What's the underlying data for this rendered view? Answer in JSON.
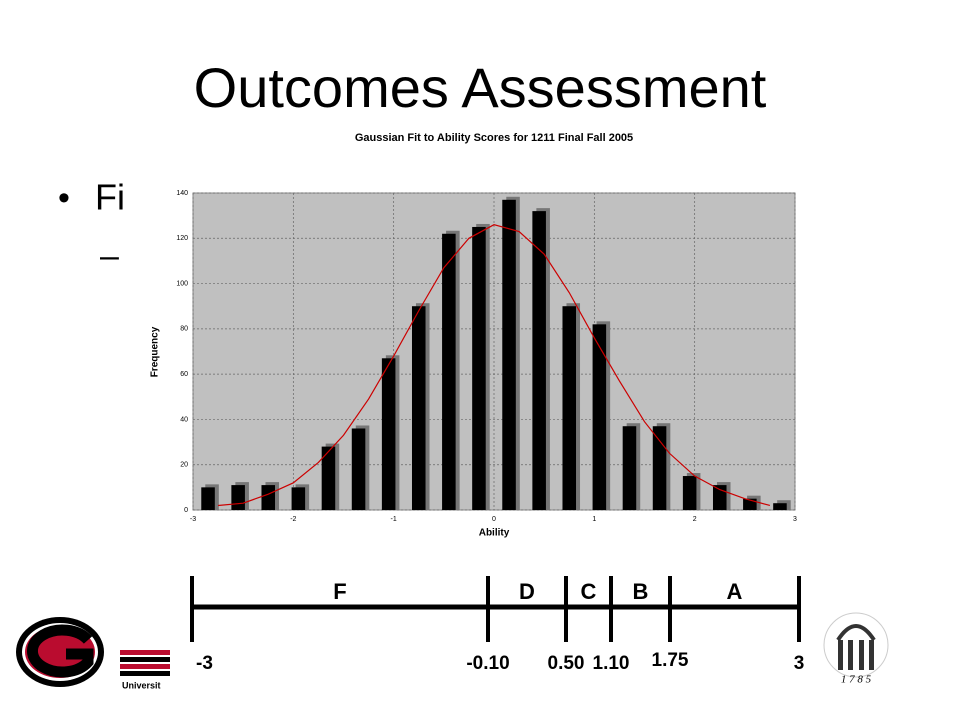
{
  "slide": {
    "title": "Outcomes Assessment",
    "bullet": "Fi",
    "sub_bullet": "–"
  },
  "chart_data": {
    "type": "bar",
    "title": "Gaussian Fit to Ability Scores for 1211 Final Fall 2005",
    "x_label": "Ability",
    "y_label": "Frequency",
    "bars": {
      "color": "#000000",
      "x": [
        -2.85,
        -2.55,
        -2.25,
        -1.95,
        -1.65,
        -1.35,
        -1.05,
        -0.75,
        -0.45,
        -0.15,
        0.15,
        0.45,
        0.75,
        1.05,
        1.35,
        1.65,
        1.95,
        2.25,
        2.55,
        2.85
      ],
      "values": [
        10,
        11,
        11,
        10,
        28,
        36,
        67,
        90,
        122,
        125,
        137,
        132,
        90,
        82,
        37,
        37,
        15,
        11,
        5,
        3
      ]
    },
    "fit": {
      "color": "#cc0000",
      "x": [
        -2.75,
        -2.5,
        -2.25,
        -2,
        -1.75,
        -1.5,
        -1.25,
        -1,
        -0.75,
        -0.5,
        -0.25,
        0,
        0.25,
        0.5,
        0.75,
        1,
        1.25,
        1.5,
        1.75,
        2,
        2.25,
        2.5,
        2.75
      ],
      "values": [
        2,
        3,
        7,
        12,
        21,
        33,
        49,
        68,
        88,
        107,
        120,
        126,
        123,
        113,
        96,
        76,
        57,
        39,
        25,
        15,
        9,
        5,
        2
      ]
    },
    "xlim": [
      -3,
      3
    ],
    "xticks": [
      -3,
      -2,
      -1,
      0,
      1,
      2,
      3
    ],
    "ylim": [
      0,
      140
    ],
    "yticks": [
      0,
      20,
      40,
      60,
      80,
      100,
      120,
      140
    ],
    "grid": true,
    "plot_background": "#c0c0c0"
  },
  "grade_scale": {
    "grades": [
      "F",
      "D",
      "C",
      "B",
      "A"
    ],
    "cutoffs": [
      "-3",
      "-0.10",
      "0.50",
      "1.10",
      "1.75",
      "3"
    ]
  },
  "footer": {
    "university": "Universit",
    "seal_year": "1 7 8 5"
  }
}
